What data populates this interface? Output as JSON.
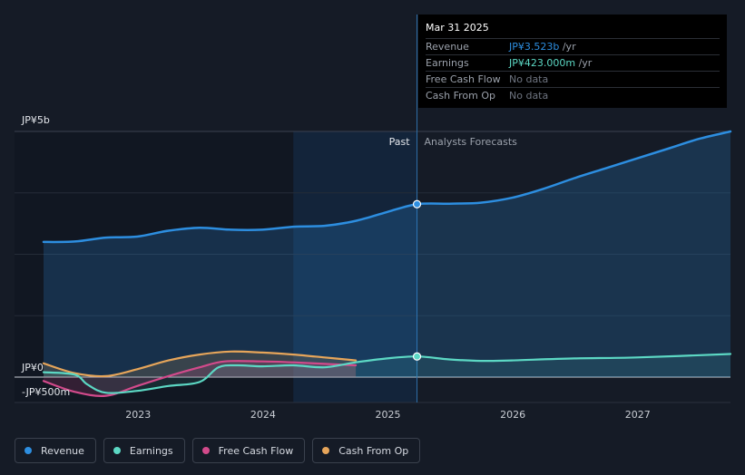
{
  "chart_data": {
    "type": "area",
    "y_axis": {
      "unit": "JP¥",
      "top_label": "JP¥5b",
      "zero_label": "JP¥0",
      "bottom_label": "-JP¥500m",
      "ylim": [
        -0.5,
        5.0
      ]
    },
    "x_axis": {
      "ticks": [
        "2023",
        "2024",
        "2025",
        "2026",
        "2027"
      ],
      "xlim": [
        2022.25,
        2027.75
      ]
    },
    "divider": {
      "x": 2025.24,
      "past_label": "Past",
      "forecast_label": "Analysts Forecasts"
    },
    "series": [
      {
        "name": "Revenue",
        "color": "#2d8ee0",
        "x": [
          2022.25,
          2022.5,
          2022.75,
          2023.0,
          2023.25,
          2023.5,
          2023.75,
          2024.0,
          2024.25,
          2024.5,
          2024.75,
          2025.0,
          2025.24,
          2025.5,
          2025.75,
          2026.0,
          2026.25,
          2026.5,
          2026.75,
          2027.0,
          2027.25,
          2027.5,
          2027.75
        ],
        "values": [
          2.75,
          2.76,
          2.84,
          2.86,
          2.98,
          3.04,
          3.0,
          3.0,
          3.06,
          3.08,
          3.18,
          3.36,
          3.52,
          3.53,
          3.55,
          3.65,
          3.83,
          4.05,
          4.25,
          4.45,
          4.65,
          4.85,
          5.0
        ]
      },
      {
        "name": "Earnings",
        "color": "#5cd8c4",
        "x": [
          2022.25,
          2022.5,
          2022.6,
          2022.75,
          2023.0,
          2023.25,
          2023.5,
          2023.65,
          2023.8,
          2024.0,
          2024.25,
          2024.5,
          2024.75,
          2025.0,
          2025.24,
          2025.5,
          2025.75,
          2026.0,
          2026.5,
          2027.0,
          2027.75
        ],
        "values": [
          0.1,
          0.05,
          -0.15,
          -0.32,
          -0.28,
          -0.18,
          -0.1,
          0.2,
          0.24,
          0.22,
          0.24,
          0.2,
          0.3,
          0.38,
          0.42,
          0.36,
          0.33,
          0.34,
          0.38,
          0.4,
          0.47
        ]
      },
      {
        "name": "Free Cash Flow",
        "color": "#d24a8b",
        "x": [
          2022.25,
          2022.5,
          2022.75,
          2023.0,
          2023.25,
          2023.5,
          2023.7,
          2024.0,
          2024.25,
          2024.5,
          2024.75
        ],
        "values": [
          -0.08,
          -0.3,
          -0.38,
          -0.18,
          0.02,
          0.2,
          0.32,
          0.32,
          0.3,
          0.27,
          0.24
        ]
      },
      {
        "name": "Cash From Op",
        "color": "#e6a55a",
        "x": [
          2022.25,
          2022.5,
          2022.75,
          2023.0,
          2023.25,
          2023.5,
          2023.75,
          2024.0,
          2024.25,
          2024.5,
          2024.75
        ],
        "values": [
          0.28,
          0.08,
          0.02,
          0.16,
          0.34,
          0.46,
          0.52,
          0.5,
          0.46,
          0.4,
          0.34
        ]
      }
    ],
    "highlight_points": [
      {
        "series": "Revenue",
        "x": 2025.24,
        "value": 3.52
      },
      {
        "series": "Earnings",
        "x": 2025.24,
        "value": 0.42
      }
    ]
  },
  "tooltip": {
    "date": "Mar 31 2025",
    "rows": [
      {
        "label": "Revenue",
        "value": "JP¥3.523b",
        "unit": " /yr",
        "color": "#2d8ee0"
      },
      {
        "label": "Earnings",
        "value": "JP¥423.000m",
        "unit": " /yr",
        "color": "#5cd8c4"
      },
      {
        "label": "Free Cash Flow",
        "value": "No data",
        "unit": "",
        "color": "#6e7480"
      },
      {
        "label": "Cash From Op",
        "value": "No data",
        "unit": "",
        "color": "#6e7480"
      }
    ]
  },
  "legend": [
    {
      "label": "Revenue",
      "color": "#2d8ee0"
    },
    {
      "label": "Earnings",
      "color": "#5cd8c4"
    },
    {
      "label": "Free Cash Flow",
      "color": "#d24a8b"
    },
    {
      "label": "Cash From Op",
      "color": "#e6a55a"
    }
  ]
}
